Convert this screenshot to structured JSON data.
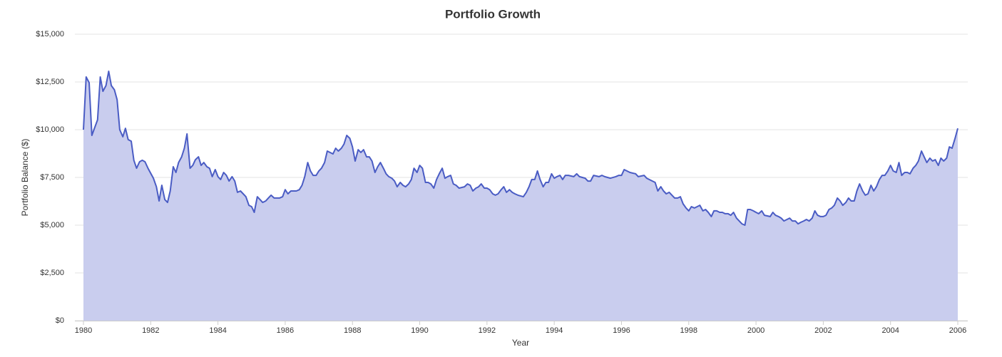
{
  "chart_data": {
    "type": "area",
    "title": "Portfolio Growth",
    "x_label": "Year",
    "y_label": "Portfolio Balance ($)",
    "color": "#4a5cc4",
    "fill": "#c9cdee",
    "grid": true,
    "xlim": [
      1980,
      2006
    ],
    "xticks": [
      1980,
      1982,
      1984,
      1986,
      1988,
      1990,
      1992,
      1994,
      1996,
      1998,
      2000,
      2002,
      2004,
      2006
    ],
    "ylim": [
      0,
      15000
    ],
    "yticks": [
      {
        "value": 0,
        "label": "$0"
      },
      {
        "value": 2500,
        "label": "$2,500"
      },
      {
        "value": 5000,
        "label": "$5,000"
      },
      {
        "value": 7500,
        "label": "$7,500"
      },
      {
        "value": 10000,
        "label": "$10,000"
      },
      {
        "value": 12500,
        "label": "$12,500"
      },
      {
        "value": 15000,
        "label": "$15,000"
      }
    ],
    "x": [
      1980.0,
      1980.08,
      1980.17,
      1980.25,
      1980.42,
      1980.5,
      1980.58,
      1980.67,
      1980.75,
      1980.83,
      1980.92,
      1981.0,
      1981.08,
      1981.17,
      1981.25,
      1981.33,
      1981.42,
      1981.5,
      1981.58,
      1981.67,
      1981.75,
      1981.83,
      1981.92,
      1982.0,
      1982.08,
      1982.17,
      1982.25,
      1982.33,
      1982.42,
      1982.5,
      1982.58,
      1982.67,
      1982.75,
      1982.83,
      1982.92,
      1983.0,
      1983.08,
      1983.17,
      1983.25,
      1983.33,
      1983.42,
      1983.5,
      1983.58,
      1983.67,
      1983.75,
      1983.83,
      1983.92,
      1984.0,
      1984.08,
      1984.17,
      1984.25,
      1984.33,
      1984.42,
      1984.5,
      1984.58,
      1984.67,
      1984.75,
      1984.83,
      1984.92,
      1985.0,
      1985.08,
      1985.17,
      1985.25,
      1985.33,
      1985.42,
      1985.5,
      1985.58,
      1985.67,
      1985.83,
      1985.92,
      1986.0,
      1986.08,
      1986.17,
      1986.33,
      1986.42,
      1986.5,
      1986.58,
      1986.67,
      1986.75,
      1986.83,
      1986.92,
      1987.0,
      1987.08,
      1987.17,
      1987.25,
      1987.33,
      1987.42,
      1987.5,
      1987.58,
      1987.67,
      1987.75,
      1987.83,
      1987.92,
      1988.0,
      1988.08,
      1988.17,
      1988.25,
      1988.33,
      1988.42,
      1988.5,
      1988.58,
      1988.67,
      1988.75,
      1988.83,
      1988.92,
      1989.0,
      1989.08,
      1989.17,
      1989.25,
      1989.33,
      1989.42,
      1989.5,
      1989.58,
      1989.67,
      1989.75,
      1989.83,
      1989.92,
      1990.0,
      1990.08,
      1990.17,
      1990.25,
      1990.33,
      1990.42,
      1990.5,
      1990.58,
      1990.67,
      1990.75,
      1990.83,
      1990.92,
      1991.0,
      1991.08,
      1991.17,
      1991.33,
      1991.42,
      1991.5,
      1991.58,
      1991.67,
      1991.75,
      1991.83,
      1991.92,
      1992.0,
      1992.08,
      1992.17,
      1992.25,
      1992.33,
      1992.42,
      1992.5,
      1992.58,
      1992.67,
      1992.75,
      1992.83,
      1992.92,
      1993.08,
      1993.17,
      1993.25,
      1993.33,
      1993.42,
      1993.5,
      1993.58,
      1993.67,
      1993.75,
      1993.83,
      1993.92,
      1994.0,
      1994.08,
      1994.17,
      1994.25,
      1994.33,
      1994.42,
      1994.58,
      1994.67,
      1994.75,
      1994.92,
      1995.0,
      1995.08,
      1995.17,
      1995.33,
      1995.42,
      1995.5,
      1995.67,
      1995.83,
      1995.92,
      1996.0,
      1996.08,
      1996.25,
      1996.42,
      1996.5,
      1996.67,
      1996.75,
      1996.92,
      1997.0,
      1997.08,
      1997.17,
      1997.25,
      1997.33,
      1997.42,
      1997.5,
      1997.58,
      1997.67,
      1997.75,
      1997.83,
      1997.92,
      1998.0,
      1998.08,
      1998.17,
      1998.25,
      1998.33,
      1998.42,
      1998.5,
      1998.58,
      1998.67,
      1998.75,
      1998.83,
      1998.92,
      1999.0,
      1999.08,
      1999.17,
      1999.25,
      1999.33,
      1999.42,
      1999.5,
      1999.58,
      1999.67,
      1999.75,
      1999.83,
      1999.92,
      2000.0,
      2000.08,
      2000.17,
      2000.25,
      2000.42,
      2000.5,
      2000.58,
      2000.67,
      2000.75,
      2000.83,
      2000.92,
      2001.0,
      2001.08,
      2001.17,
      2001.25,
      2001.33,
      2001.42,
      2001.5,
      2001.58,
      2001.67,
      2001.75,
      2001.83,
      2001.92,
      2002.0,
      2002.08,
      2002.17,
      2002.25,
      2002.33,
      2002.42,
      2002.5,
      2002.58,
      2002.67,
      2002.75,
      2002.83,
      2002.92,
      2003.0,
      2003.08,
      2003.17,
      2003.25,
      2003.33,
      2003.42,
      2003.5,
      2003.58,
      2003.67,
      2003.75,
      2003.83,
      2003.92,
      2004.0,
      2004.08,
      2004.17,
      2004.25,
      2004.33,
      2004.42,
      2004.5,
      2004.58,
      2004.67,
      2004.75,
      2004.83,
      2004.92,
      2005.0,
      2005.08,
      2005.17,
      2005.25,
      2005.33,
      2005.42,
      2005.5,
      2005.58,
      2005.67,
      2005.75,
      2005.83,
      2005.92,
      2006.0
    ],
    "values": [
      10000,
      12760,
      12460,
      9700,
      10520,
      12760,
      12010,
      12310,
      13060,
      12310,
      12090,
      11570,
      10000,
      9630,
      10070,
      9480,
      9400,
      8400,
      7980,
      8320,
      8400,
      8320,
      7980,
      7720,
      7460,
      7010,
      6270,
      7090,
      6340,
      6190,
      6790,
      8060,
      7760,
      8280,
      8580,
      9030,
      9780,
      7980,
      8130,
      8430,
      8580,
      8130,
      8280,
      8060,
      7980,
      7540,
      7910,
      7540,
      7390,
      7760,
      7610,
      7310,
      7540,
      7310,
      6720,
      6790,
      6640,
      6490,
      6040,
      5970,
      5670,
      6490,
      6340,
      6190,
      6270,
      6420,
      6570,
      6420,
      6420,
      6490,
      6860,
      6640,
      6790,
      6790,
      6860,
      7090,
      7540,
      8280,
      7840,
      7610,
      7610,
      7840,
      7980,
      8280,
      8880,
      8810,
      8730,
      9030,
      8880,
      9030,
      9250,
      9700,
      9550,
      9100,
      8360,
      8950,
      8810,
      8950,
      8580,
      8580,
      8360,
      7760,
      8060,
      8280,
      7980,
      7690,
      7540,
      7460,
      7310,
      7010,
      7240,
      7090,
      7010,
      7160,
      7390,
      7980,
      7760,
      8130,
      7980,
      7240,
      7240,
      7160,
      6940,
      7390,
      7690,
      7980,
      7460,
      7540,
      7610,
      7160,
      7090,
      6940,
      7010,
      7160,
      7090,
      6790,
      6940,
      7010,
      7160,
      6940,
      6940,
      6860,
      6640,
      6570,
      6640,
      6860,
      7010,
      6720,
      6860,
      6720,
      6640,
      6570,
      6490,
      6720,
      7010,
      7390,
      7390,
      7840,
      7390,
      7010,
      7240,
      7240,
      7690,
      7460,
      7540,
      7610,
      7390,
      7610,
      7610,
      7540,
      7690,
      7540,
      7460,
      7310,
      7310,
      7610,
      7540,
      7610,
      7540,
      7460,
      7540,
      7610,
      7610,
      7910,
      7760,
      7690,
      7540,
      7610,
      7460,
      7310,
      7240,
      6790,
      7010,
      6790,
      6640,
      6720,
      6570,
      6420,
      6420,
      6490,
      6120,
      5900,
      5750,
      5970,
      5900,
      5970,
      6040,
      5750,
      5820,
      5670,
      5450,
      5750,
      5750,
      5670,
      5670,
      5600,
      5600,
      5520,
      5670,
      5370,
      5220,
      5070,
      5000,
      5820,
      5820,
      5750,
      5670,
      5600,
      5750,
      5520,
      5450,
      5670,
      5520,
      5450,
      5370,
      5220,
      5300,
      5370,
      5220,
      5220,
      5070,
      5150,
      5220,
      5300,
      5220,
      5370,
      5750,
      5520,
      5450,
      5450,
      5520,
      5820,
      5900,
      6040,
      6420,
      6270,
      6040,
      6190,
      6420,
      6270,
      6270,
      6790,
      7160,
      6790,
      6570,
      6640,
      7090,
      6790,
      7010,
      7390,
      7610,
      7610,
      7840,
      8130,
      7840,
      7760,
      8280,
      7610,
      7760,
      7760,
      7690,
      7980,
      8130,
      8360,
      8880,
      8580,
      8280,
      8510,
      8360,
      8430,
      8130,
      8510,
      8360,
      8510,
      9100,
      9030,
      9550,
      10070
    ]
  }
}
